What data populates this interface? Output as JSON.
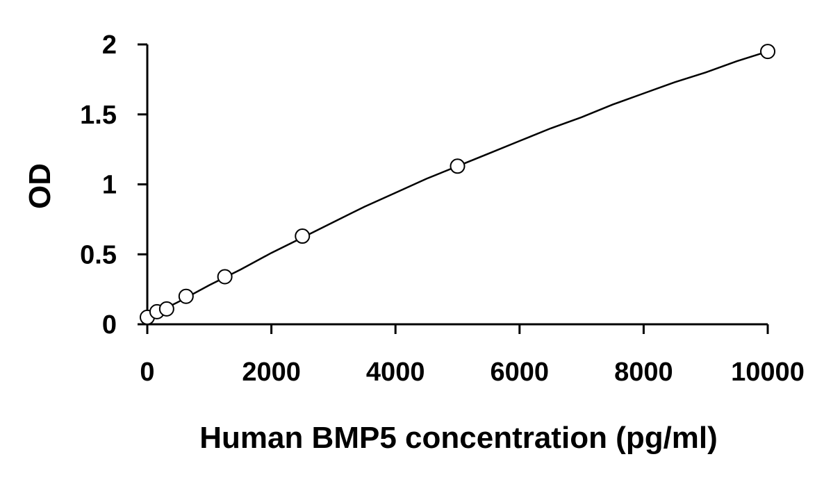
{
  "chart_data": {
    "type": "scatter",
    "title": "",
    "xlabel": "Human BMP5 concentration (pg/ml)",
    "ylabel": "OD",
    "xlim": [
      0,
      10000
    ],
    "ylim": [
      0,
      2
    ],
    "x_ticks": [
      0,
      2000,
      4000,
      6000,
      8000,
      10000
    ],
    "x_tick_labels": [
      "0",
      "2000",
      "4000",
      "6000",
      "8000",
      "10000"
    ],
    "y_ticks": [
      0,
      0.5,
      1,
      1.5,
      2
    ],
    "y_tick_labels": [
      "0",
      "0.5",
      "1",
      "1.5",
      "2"
    ],
    "grid": false,
    "legend": "none",
    "series": [
      {
        "marker": "open-circle",
        "x": [
          0,
          156,
          312,
          625,
          1250,
          2500,
          5000,
          10000
        ],
        "y": [
          0.05,
          0.09,
          0.11,
          0.2,
          0.34,
          0.63,
          1.13,
          1.95
        ]
      }
    ],
    "fit_curve": {
      "style": "smooth-line",
      "x": [
        0,
        500,
        1000,
        1500,
        2000,
        2500,
        3000,
        3500,
        4000,
        4500,
        5000,
        5500,
        6000,
        6500,
        7000,
        7500,
        8000,
        8500,
        9000,
        9500,
        10000
      ],
      "y": [
        0.05,
        0.16,
        0.28,
        0.39,
        0.51,
        0.62,
        0.73,
        0.84,
        0.94,
        1.04,
        1.13,
        1.22,
        1.31,
        1.4,
        1.48,
        1.57,
        1.65,
        1.73,
        1.8,
        1.88,
        1.95
      ]
    }
  }
}
